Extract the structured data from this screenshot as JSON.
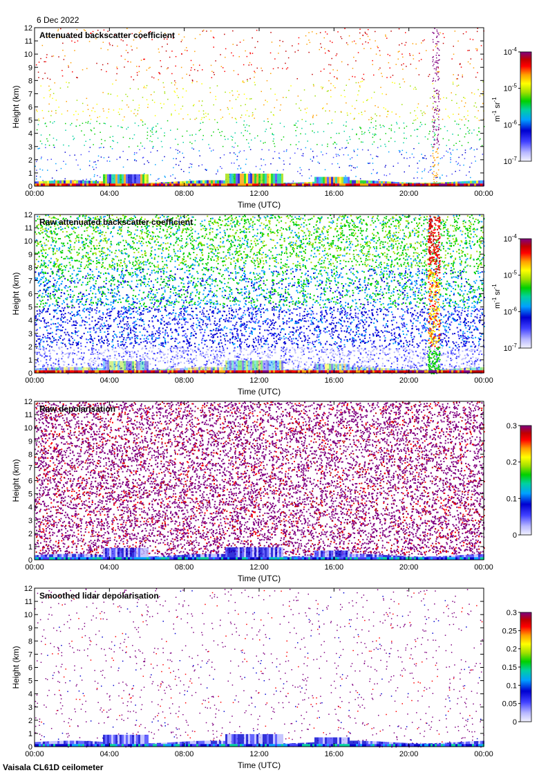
{
  "date": "6 Dec 2022",
  "footer": "Vaisala CL61D ceilometer",
  "palette": [
    "#f2f2ff",
    "#b8b8ff",
    "#4040ff",
    "#0000d0",
    "#00a0ff",
    "#00d0a0",
    "#00d000",
    "#a0e000",
    "#ffff00",
    "#ffa000",
    "#ff0000",
    "#c00000",
    "#800080"
  ],
  "chart_data": [
    {
      "type": "heatmap",
      "title": "Attenuated backscatter coefficient",
      "xlabel": "Time (UTC)",
      "ylabel": "Height (km)",
      "x_ticks": [
        "00:00",
        "04:00",
        "08:00",
        "12:00",
        "16:00",
        "20:00",
        "00:00"
      ],
      "y_ticks": [
        "0",
        "1",
        "2",
        "3",
        "4",
        "5",
        "6",
        "7",
        "8",
        "9",
        "10",
        "11",
        "12"
      ],
      "ylim": [
        0,
        12
      ],
      "scale": "log",
      "colorbar_ticks": [
        {
          "base": "10",
          "exp": "-4",
          "value": 0.0001
        },
        {
          "base": "10",
          "exp": "-5",
          "value": 1e-05
        },
        {
          "base": "10",
          "exp": "-6",
          "value": 1e-06
        },
        {
          "base": "10",
          "exp": "-7",
          "value": 1e-07
        }
      ],
      "colorbar_label": {
        "parts": [
          "m",
          "-1",
          " sr",
          "-1"
        ]
      }
    },
    {
      "type": "heatmap",
      "title": "Raw attenuated backscatter coefficient",
      "xlabel": "Time (UTC)",
      "ylabel": "Height (km)",
      "x_ticks": [
        "00:00",
        "04:00",
        "08:00",
        "12:00",
        "16:00",
        "20:00",
        "00:00"
      ],
      "y_ticks": [
        "0",
        "1",
        "2",
        "3",
        "4",
        "5",
        "6",
        "7",
        "8",
        "9",
        "10",
        "11",
        "12"
      ],
      "ylim": [
        0,
        12
      ],
      "scale": "log",
      "colorbar_ticks": [
        {
          "base": "10",
          "exp": "-4",
          "value": 0.0001
        },
        {
          "base": "10",
          "exp": "-5",
          "value": 1e-05
        },
        {
          "base": "10",
          "exp": "-6",
          "value": 1e-06
        },
        {
          "base": "10",
          "exp": "-7",
          "value": 1e-07
        }
      ],
      "colorbar_label": {
        "parts": [
          "m",
          "-1",
          " sr",
          "-1"
        ]
      }
    },
    {
      "type": "heatmap",
      "title": "Raw depolarisation",
      "xlabel": "Time (UTC)",
      "ylabel": "Height (km)",
      "x_ticks": [
        "00:00",
        "04:00",
        "08:00",
        "12:00",
        "16:00",
        "20:00",
        "00:00"
      ],
      "y_ticks": [
        "0",
        "1",
        "2",
        "3",
        "4",
        "5",
        "6",
        "7",
        "8",
        "9",
        "10",
        "11",
        "12"
      ],
      "ylim": [
        0,
        12
      ],
      "scale": "linear",
      "colorbar_ticks": [
        {
          "text": "0.3",
          "value": 0.3
        },
        {
          "text": "0.2",
          "value": 0.2
        },
        {
          "text": "0.1",
          "value": 0.1
        },
        {
          "text": "0",
          "value": 0
        }
      ],
      "colorbar_label": null
    },
    {
      "type": "heatmap",
      "title": "Smoothed lidar depolarisation",
      "xlabel": "Time (UTC)",
      "ylabel": "Height (km)",
      "x_ticks": [
        "00:00",
        "04:00",
        "08:00",
        "12:00",
        "16:00",
        "20:00",
        "00:00"
      ],
      "y_ticks": [
        "0",
        "1",
        "2",
        "3",
        "4",
        "5",
        "6",
        "7",
        "8",
        "9",
        "10",
        "11",
        "12"
      ],
      "ylim": [
        0,
        12
      ],
      "scale": "linear",
      "colorbar_ticks": [
        {
          "text": "0.3",
          "value": 0.3
        },
        {
          "text": "0.25",
          "value": 0.25
        },
        {
          "text": "0.2",
          "value": 0.2
        },
        {
          "text": "0.15",
          "value": 0.15
        },
        {
          "text": "0.1",
          "value": 0.1
        },
        {
          "text": "0.05",
          "value": 0.05
        },
        {
          "text": "0",
          "value": 0
        }
      ],
      "colorbar_label": null
    }
  ]
}
